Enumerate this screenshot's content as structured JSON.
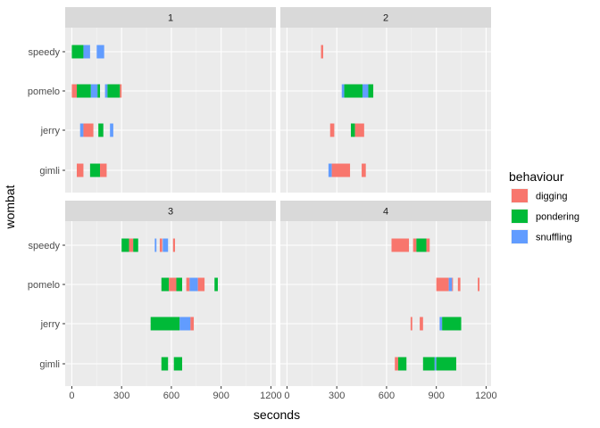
{
  "chart_data": {
    "type": "timeline",
    "xlabel": "seconds",
    "ylabel": "wombat",
    "xlim": [
      -40,
      1230
    ],
    "x_ticks": [
      0,
      300,
      600,
      900,
      1200
    ],
    "x_tick_labels": [
      "0",
      "300",
      "600",
      "900",
      "1200"
    ],
    "categories": [
      "speedy",
      "pomelo",
      "jerry",
      "gimli"
    ],
    "legend": {
      "title": "behaviour",
      "entries": [
        {
          "key": "digging",
          "label": "digging",
          "color": "#F8766D"
        },
        {
          "key": "pondering",
          "label": "pondering",
          "color": "#00BA38"
        },
        {
          "key": "snuffling",
          "label": "snuffling",
          "color": "#619CFF"
        }
      ]
    },
    "facets": [
      {
        "label": "1",
        "segments": [
          {
            "wombat": "speedy",
            "behaviour": "pondering",
            "start": 0,
            "end": 70
          },
          {
            "wombat": "speedy",
            "behaviour": "snuffling",
            "start": 70,
            "end": 110
          },
          {
            "wombat": "speedy",
            "behaviour": "snuffling",
            "start": 150,
            "end": 195
          },
          {
            "wombat": "pomelo",
            "behaviour": "digging",
            "start": 0,
            "end": 30
          },
          {
            "wombat": "pomelo",
            "behaviour": "pondering",
            "start": 30,
            "end": 115
          },
          {
            "wombat": "pomelo",
            "behaviour": "snuffling",
            "start": 115,
            "end": 155
          },
          {
            "wombat": "pomelo",
            "behaviour": "pondering",
            "start": 155,
            "end": 170
          },
          {
            "wombat": "pomelo",
            "behaviour": "snuffling",
            "start": 200,
            "end": 215
          },
          {
            "wombat": "pomelo",
            "behaviour": "pondering",
            "start": 215,
            "end": 290
          },
          {
            "wombat": "pomelo",
            "behaviour": "digging",
            "start": 290,
            "end": 300
          },
          {
            "wombat": "jerry",
            "behaviour": "snuffling",
            "start": 50,
            "end": 70
          },
          {
            "wombat": "jerry",
            "behaviour": "digging",
            "start": 70,
            "end": 130
          },
          {
            "wombat": "jerry",
            "behaviour": "pondering",
            "start": 160,
            "end": 190
          },
          {
            "wombat": "jerry",
            "behaviour": "snuffling",
            "start": 230,
            "end": 250
          },
          {
            "wombat": "gimli",
            "behaviour": "digging",
            "start": 30,
            "end": 70
          },
          {
            "wombat": "gimli",
            "behaviour": "pondering",
            "start": 110,
            "end": 170
          },
          {
            "wombat": "gimli",
            "behaviour": "digging",
            "start": 170,
            "end": 210
          }
        ]
      },
      {
        "label": "2",
        "segments": [
          {
            "wombat": "speedy",
            "behaviour": "digging",
            "start": 205,
            "end": 218
          },
          {
            "wombat": "pomelo",
            "behaviour": "snuffling",
            "start": 330,
            "end": 345
          },
          {
            "wombat": "pomelo",
            "behaviour": "pondering",
            "start": 345,
            "end": 455
          },
          {
            "wombat": "pomelo",
            "behaviour": "snuffling",
            "start": 455,
            "end": 490
          },
          {
            "wombat": "pomelo",
            "behaviour": "pondering",
            "start": 490,
            "end": 520
          },
          {
            "wombat": "jerry",
            "behaviour": "digging",
            "start": 260,
            "end": 285
          },
          {
            "wombat": "jerry",
            "behaviour": "pondering",
            "start": 385,
            "end": 410
          },
          {
            "wombat": "jerry",
            "behaviour": "digging",
            "start": 410,
            "end": 465
          },
          {
            "wombat": "gimli",
            "behaviour": "snuffling",
            "start": 250,
            "end": 270
          },
          {
            "wombat": "gimli",
            "behaviour": "digging",
            "start": 270,
            "end": 380
          },
          {
            "wombat": "gimli",
            "behaviour": "digging",
            "start": 450,
            "end": 475
          }
        ]
      },
      {
        "label": "3",
        "segments": [
          {
            "wombat": "speedy",
            "behaviour": "pondering",
            "start": 300,
            "end": 345
          },
          {
            "wombat": "speedy",
            "behaviour": "digging",
            "start": 345,
            "end": 370
          },
          {
            "wombat": "speedy",
            "behaviour": "pondering",
            "start": 370,
            "end": 400
          },
          {
            "wombat": "speedy",
            "behaviour": "snuffling",
            "start": 500,
            "end": 510
          },
          {
            "wombat": "speedy",
            "behaviour": "digging",
            "start": 530,
            "end": 545
          },
          {
            "wombat": "speedy",
            "behaviour": "snuffling",
            "start": 548,
            "end": 580
          },
          {
            "wombat": "speedy",
            "behaviour": "digging",
            "start": 610,
            "end": 622
          },
          {
            "wombat": "pomelo",
            "behaviour": "pondering",
            "start": 540,
            "end": 585
          },
          {
            "wombat": "pomelo",
            "behaviour": "digging",
            "start": 585,
            "end": 630
          },
          {
            "wombat": "pomelo",
            "behaviour": "pondering",
            "start": 630,
            "end": 665
          },
          {
            "wombat": "pomelo",
            "behaviour": "digging",
            "start": 690,
            "end": 710
          },
          {
            "wombat": "pomelo",
            "behaviour": "snuffling",
            "start": 710,
            "end": 760
          },
          {
            "wombat": "pomelo",
            "behaviour": "digging",
            "start": 760,
            "end": 800
          },
          {
            "wombat": "pomelo",
            "behaviour": "pondering",
            "start": 860,
            "end": 880
          },
          {
            "wombat": "jerry",
            "behaviour": "pondering",
            "start": 475,
            "end": 650
          },
          {
            "wombat": "jerry",
            "behaviour": "snuffling",
            "start": 650,
            "end": 715
          },
          {
            "wombat": "jerry",
            "behaviour": "digging",
            "start": 715,
            "end": 735
          },
          {
            "wombat": "gimli",
            "behaviour": "pondering",
            "start": 540,
            "end": 580
          },
          {
            "wombat": "gimli",
            "behaviour": "pondering",
            "start": 615,
            "end": 665
          }
        ]
      },
      {
        "label": "4",
        "segments": [
          {
            "wombat": "speedy",
            "behaviour": "digging",
            "start": 630,
            "end": 735
          },
          {
            "wombat": "speedy",
            "behaviour": "digging",
            "start": 760,
            "end": 780
          },
          {
            "wombat": "speedy",
            "behaviour": "pondering",
            "start": 780,
            "end": 840
          },
          {
            "wombat": "speedy",
            "behaviour": "digging",
            "start": 840,
            "end": 860
          },
          {
            "wombat": "pomelo",
            "behaviour": "digging",
            "start": 900,
            "end": 975
          },
          {
            "wombat": "pomelo",
            "behaviour": "snuffling",
            "start": 975,
            "end": 995
          },
          {
            "wombat": "pomelo",
            "behaviour": "digging",
            "start": 995,
            "end": 1000
          },
          {
            "wombat": "pomelo",
            "behaviour": "digging",
            "start": 1030,
            "end": 1045
          },
          {
            "wombat": "pomelo",
            "behaviour": "digging",
            "start": 1150,
            "end": 1160
          },
          {
            "wombat": "jerry",
            "behaviour": "digging",
            "start": 745,
            "end": 755
          },
          {
            "wombat": "jerry",
            "behaviour": "digging",
            "start": 800,
            "end": 820
          },
          {
            "wombat": "jerry",
            "behaviour": "snuffling",
            "start": 920,
            "end": 935
          },
          {
            "wombat": "jerry",
            "behaviour": "pondering",
            "start": 935,
            "end": 1050
          },
          {
            "wombat": "gimli",
            "behaviour": "digging",
            "start": 650,
            "end": 670
          },
          {
            "wombat": "gimli",
            "behaviour": "pondering",
            "start": 670,
            "end": 720
          },
          {
            "wombat": "gimli",
            "behaviour": "pondering",
            "start": 820,
            "end": 890
          },
          {
            "wombat": "gimli",
            "behaviour": "snuffling",
            "start": 890,
            "end": 900
          },
          {
            "wombat": "gimli",
            "behaviour": "pondering",
            "start": 900,
            "end": 1020
          }
        ]
      }
    ]
  },
  "colors": {
    "panel_bg": "#EBEBEB",
    "strip_bg": "#D9D9D9",
    "grid_major": "#FFFFFF",
    "axis_tick": "#333333"
  }
}
